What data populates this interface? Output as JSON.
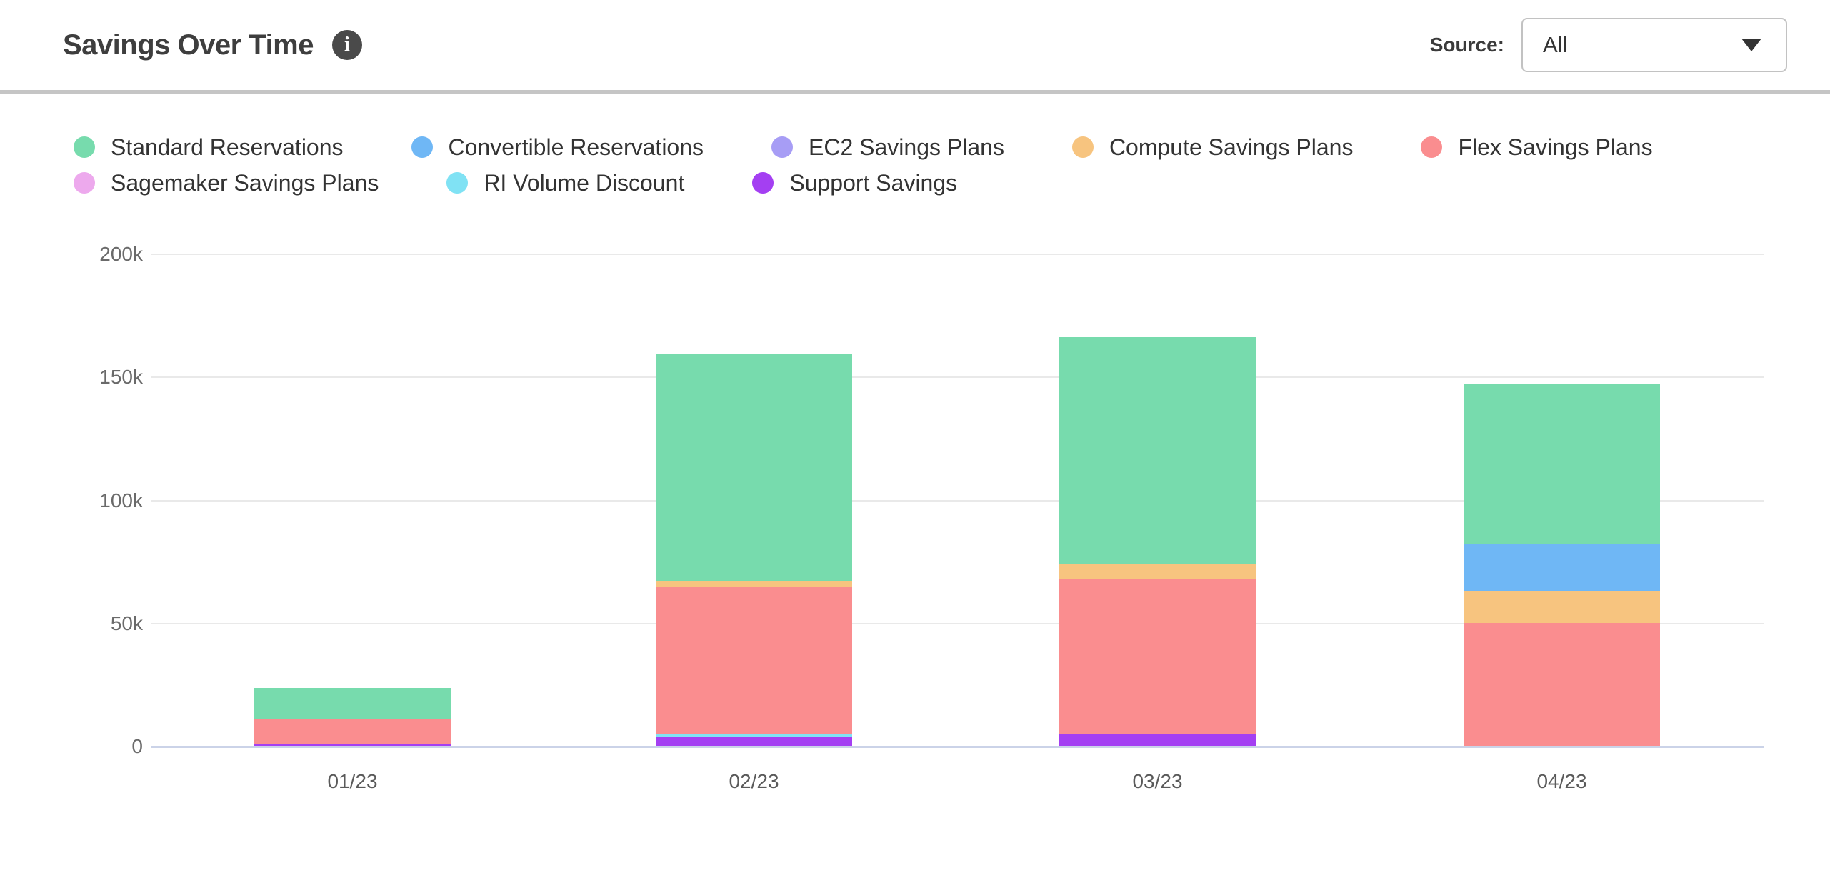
{
  "header": {
    "title": "Savings Over Time",
    "source_label": "Source:",
    "source_value": "All"
  },
  "legend": [
    {
      "label": "Standard Reservations",
      "color": "#77DBAD"
    },
    {
      "label": "Convertible Reservations",
      "color": "#6FB7F5"
    },
    {
      "label": "EC2 Savings Plans",
      "color": "#A79DF5"
    },
    {
      "label": "Compute Savings Plans",
      "color": "#F7C47F"
    },
    {
      "label": "Flex Savings Plans",
      "color": "#FA8D8F"
    },
    {
      "label": "Sagemaker Savings Plans",
      "color": "#EDA9ED"
    },
    {
      "label": "RI Volume Discount",
      "color": "#80E2F4"
    },
    {
      "label": "Support Savings",
      "color": "#A43FF2"
    }
  ],
  "chart_data": {
    "type": "bar",
    "stacked": true,
    "title": "Savings Over Time",
    "categories": [
      "01/23",
      "02/23",
      "03/23",
      "04/23"
    ],
    "unit": "USD",
    "ylim": [
      0,
      200000
    ],
    "y_ticks": [
      {
        "value": 200000,
        "label": "200k"
      },
      {
        "value": 150000,
        "label": "150k"
      },
      {
        "value": 100000,
        "label": "100k"
      },
      {
        "value": 50000,
        "label": "50k"
      },
      {
        "value": 0,
        "label": "0"
      }
    ],
    "grid": true,
    "legend_position": "top",
    "series": [
      {
        "name": "Support Savings",
        "color": "#A43FF2",
        "values": [
          1000,
          3500,
          5000,
          0
        ]
      },
      {
        "name": "RI Volume Discount",
        "color": "#80E2F4",
        "values": [
          0,
          1500,
          0,
          0
        ]
      },
      {
        "name": "Flex Savings Plans",
        "color": "#FA8D8F",
        "values": [
          10000,
          59500,
          62500,
          50000
        ]
      },
      {
        "name": "Compute Savings Plans",
        "color": "#F7C47F",
        "values": [
          0,
          2500,
          6500,
          13000
        ]
      },
      {
        "name": "Convertible Reservations",
        "color": "#6FB7F5",
        "values": [
          0,
          0,
          0,
          19000
        ]
      },
      {
        "name": "Standard Reservations",
        "color": "#77DBAD",
        "values": [
          12500,
          92000,
          92000,
          65000
        ]
      },
      {
        "name": "EC2 Savings Plans",
        "color": "#A79DF5",
        "values": [
          0,
          0,
          0,
          0
        ]
      },
      {
        "name": "Sagemaker Savings Plans",
        "color": "#EDA9ED",
        "values": [
          0,
          0,
          0,
          0
        ]
      }
    ],
    "totals": [
      23500,
      159000,
      166000,
      147000
    ]
  }
}
